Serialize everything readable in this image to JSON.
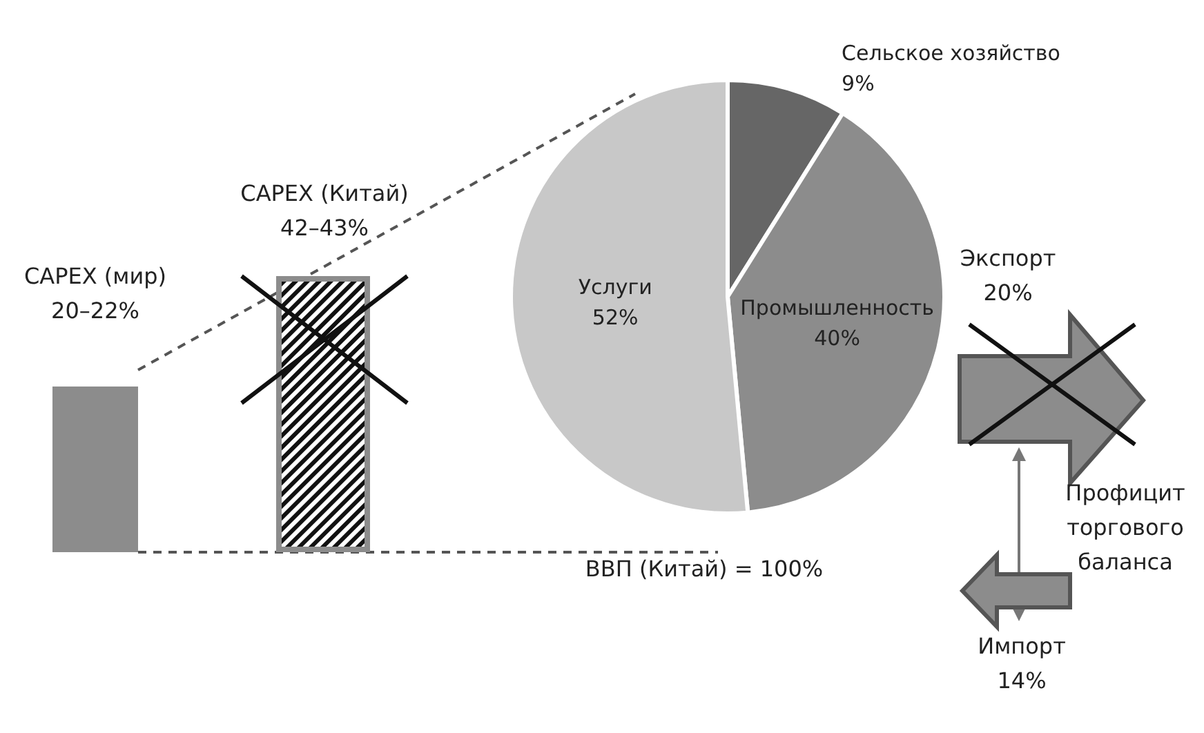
{
  "chart_data": {
    "type": "pie",
    "categories": [
      "Сельское хозяйство",
      "Промышленность",
      "Услуги"
    ],
    "values": [
      9,
      40,
      52
    ],
    "colors": [
      "#666666",
      "#8c8c8c",
      "#c8c8c8"
    ],
    "value_labels": [
      "9%",
      "40%",
      "52%"
    ],
    "annotations": [
      "CAPEX (мир)",
      "20–22%",
      "CAPEX (Китай)",
      "42–43%",
      "Экспорт",
      "20%",
      "Профицит",
      "торгового",
      "баланса",
      "ВВП (Китай) = 100%",
      "Импорт",
      "14%"
    ]
  }
}
